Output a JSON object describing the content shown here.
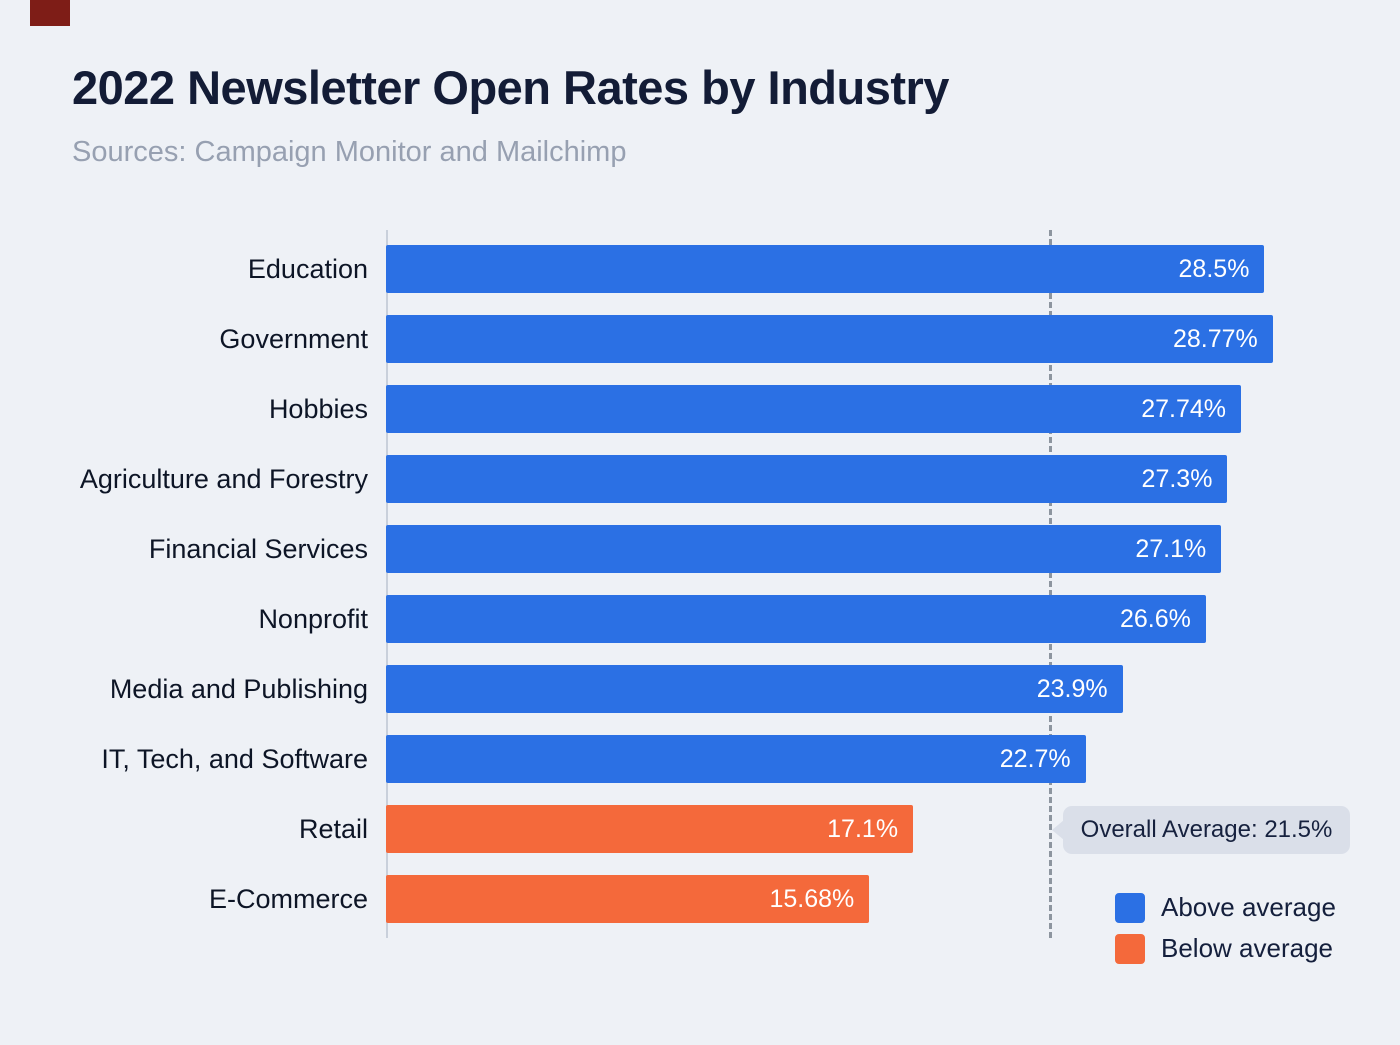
{
  "header": {
    "title": "2022 Newsletter Open Rates by Industry",
    "subtitle": "Sources: Campaign Monitor and Mailchimp"
  },
  "colors": {
    "above": "#2B70E4",
    "below": "#F4693B",
    "background": "#EEF1F6",
    "title_text": "#131C36",
    "subtitle_text": "#97A0B1",
    "average_line": "#8D959F",
    "callout_bg": "#DADFE9"
  },
  "chart_data": {
    "type": "bar",
    "orientation": "horizontal",
    "title": "2022 Newsletter Open Rates by Industry",
    "subtitle": "Sources: Campaign Monitor and Mailchimp",
    "xlabel": "",
    "ylabel": "",
    "xlim": [
      0,
      29.2
    ],
    "grid": "off",
    "legend_position": "bottom-right",
    "categories": [
      "Education",
      "Government",
      "Hobbies",
      "Agriculture and Forestry",
      "Financial Services",
      "Nonprofit",
      "Media and Publishing",
      "IT, Tech, and Software",
      "Retail",
      "E-Commerce"
    ],
    "values": [
      28.5,
      28.77,
      27.74,
      27.3,
      27.1,
      26.6,
      23.9,
      22.7,
      17.1,
      15.68
    ],
    "value_labels": [
      "28.5%",
      "28.77%",
      "27.74%",
      "27.3%",
      "27.1%",
      "26.6%",
      "23.9%",
      "22.7%",
      "17.1%",
      "15.68%"
    ],
    "bar_status": [
      "above",
      "above",
      "above",
      "above",
      "above",
      "above",
      "above",
      "above",
      "below",
      "below"
    ],
    "average": {
      "value": 21.5,
      "label": "Overall Average: 21.5%"
    },
    "legend": [
      {
        "label": "Above average",
        "color_key": "above"
      },
      {
        "label": "Below average",
        "color_key": "below"
      }
    ]
  }
}
